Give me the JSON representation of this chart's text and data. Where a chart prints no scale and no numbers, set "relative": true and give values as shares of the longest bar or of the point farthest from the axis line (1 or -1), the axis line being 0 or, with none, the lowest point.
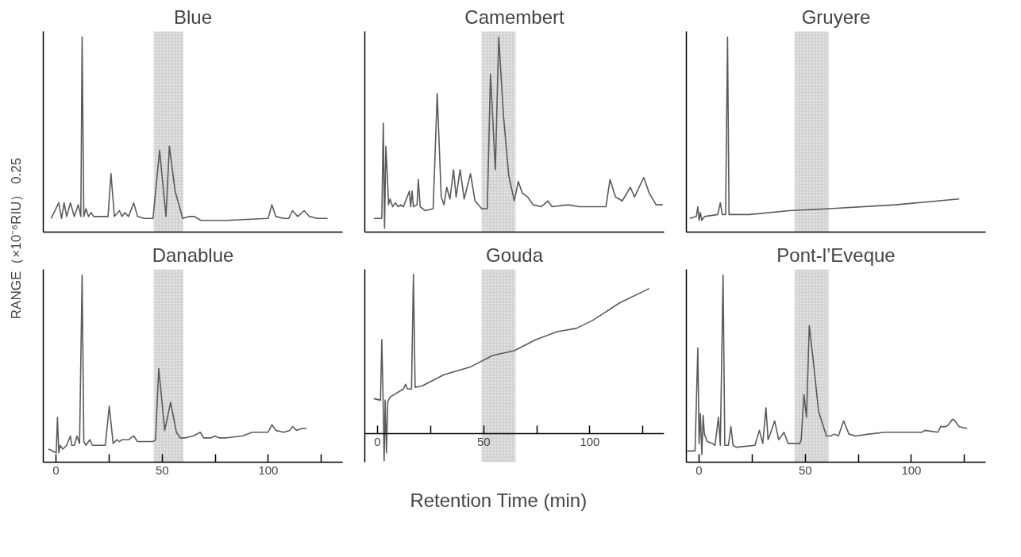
{
  "chart_data": [
    {
      "type": "line",
      "title": "Blue",
      "ylabel": "RANGE（×10⁻⁶RIU） 0.25",
      "relative": true,
      "xlim": [
        -6,
        135
      ],
      "tick_labels": false,
      "grid": false,
      "bands": [
        {
          "axis": "x",
          "from": 46,
          "to": 60,
          "color": "#c8c8c8"
        }
      ],
      "x": [
        -2.3,
        1.3,
        2.6,
        3.8,
        5.0,
        6.8,
        8.6,
        10.5,
        11.7,
        12.3,
        13.1,
        14.1,
        15.3,
        16.5,
        17.8,
        24.5,
        25.9,
        27.5,
        29.9,
        31.1,
        32.4,
        34.2,
        36.6,
        38.4,
        41.5,
        45.7,
        48.8,
        51.8,
        53.4,
        56.1,
        59.7,
        62.8,
        65.2,
        68.2,
        80.4,
        99.9,
        101.7,
        103.5,
        107.2,
        109.6,
        111.4,
        113.9,
        116.9,
        119.3,
        123.0,
        127.9
      ],
      "series": [
        {
          "color": "#5a5a5a",
          "values": [
            0.07,
            0.15,
            0.07,
            0.15,
            0.08,
            0.15,
            0.08,
            0.14,
            0.08,
            1.0,
            0.08,
            0.12,
            0.08,
            0.1,
            0.08,
            0.08,
            0.3,
            0.08,
            0.11,
            0.08,
            0.1,
            0.08,
            0.15,
            0.08,
            0.07,
            0.07,
            0.42,
            0.08,
            0.44,
            0.21,
            0.07,
            0.08,
            0.08,
            0.06,
            0.06,
            0.07,
            0.14,
            0.08,
            0.07,
            0.07,
            0.11,
            0.08,
            0.11,
            0.08,
            0.07,
            0.07
          ]
        }
      ]
    },
    {
      "type": "line",
      "title": "Camembert",
      "relative": true,
      "xlim": [
        -6,
        135
      ],
      "tick_labels": false,
      "grid": false,
      "bands": [
        {
          "axis": "x",
          "from": 49,
          "to": 65,
          "color": "#c8c8c8"
        }
      ],
      "x": [
        -1.8,
        2.0,
        2.7,
        3.3,
        3.9,
        4.6,
        5.2,
        5.9,
        7.1,
        8.4,
        9.7,
        10.9,
        12.2,
        15.0,
        15.6,
        16.3,
        16.9,
        18.6,
        19.2,
        20.1,
        22.4,
        26.2,
        28.1,
        30.0,
        31.3,
        32.6,
        34.1,
        35.8,
        37.0,
        38.9,
        40.8,
        43.8,
        45.9,
        49.1,
        51.7,
        53.2,
        55.5,
        57.1,
        59.3,
        61.8,
        64.4,
        66.3,
        68.2,
        70.7,
        73.3,
        77.1,
        80.3,
        82.2,
        89.8,
        94.9,
        107.6,
        109.5,
        112.1,
        115.3,
        119.1,
        121.0,
        125.4,
        128.0,
        131.2,
        134.4
      ],
      "series": [
        {
          "color": "#5a5a5a",
          "values": [
            0.07,
            0.07,
            0.56,
            0.02,
            0.44,
            0.29,
            0.14,
            0.17,
            0.13,
            0.15,
            0.13,
            0.14,
            0.13,
            0.21,
            0.13,
            0.21,
            0.13,
            0.14,
            0.27,
            0.13,
            0.11,
            0.12,
            0.71,
            0.18,
            0.14,
            0.23,
            0.17,
            0.32,
            0.18,
            0.32,
            0.17,
            0.3,
            0.16,
            0.12,
            0.12,
            0.81,
            0.32,
            1.0,
            0.6,
            0.29,
            0.16,
            0.26,
            0.2,
            0.18,
            0.14,
            0.13,
            0.16,
            0.13,
            0.14,
            0.13,
            0.13,
            0.27,
            0.18,
            0.16,
            0.23,
            0.18,
            0.28,
            0.2,
            0.14,
            0.14
          ]
        }
      ]
    },
    {
      "type": "line",
      "title": "Gruyere",
      "relative": true,
      "xlim": [
        -6,
        135
      ],
      "tick_labels": false,
      "grid": false,
      "bands": [
        {
          "axis": "x",
          "from": 45,
          "to": 61,
          "color": "#c8c8c8"
        }
      ],
      "x": [
        -4.4,
        -1.3,
        -0.6,
        0.0,
        0.6,
        1.3,
        2.5,
        8.8,
        10.0,
        10.9,
        12.5,
        13.4,
        14.1,
        23.8,
        42.5,
        61.3,
        92.5,
        122.5
      ],
      "series": [
        {
          "color": "#5a5a5a",
          "values": [
            0.07,
            0.08,
            0.13,
            0.06,
            0.1,
            0.06,
            0.08,
            0.09,
            0.15,
            0.09,
            0.09,
            1.0,
            0.09,
            0.09,
            0.11,
            0.12,
            0.14,
            0.17
          ]
        }
      ]
    },
    {
      "type": "line",
      "title": "Danablue",
      "relative": true,
      "xlim": [
        -6,
        135
      ],
      "xticks": [
        0,
        {
          "value": 25,
          "label": null
        },
        50,
        {
          "value": 75,
          "label": null
        },
        100,
        {
          "value": 125,
          "label": null
        }
      ],
      "tick_labels": "x",
      "grid": false,
      "bands": [
        {
          "axis": "x",
          "from": 46,
          "to": 60,
          "color": "#c8c8c8"
        }
      ],
      "x": [
        -3.5,
        0.1,
        0.7,
        1.3,
        1.9,
        3.2,
        5.0,
        6.8,
        7.4,
        8.6,
        9.9,
        11.1,
        12.3,
        13.1,
        14.1,
        15.9,
        17.2,
        23.2,
        25.1,
        26.9,
        28.7,
        29.9,
        31.1,
        33.0,
        34.2,
        36.6,
        38.4,
        45.7,
        46.9,
        48.4,
        51.2,
        54.0,
        56.7,
        58.5,
        60.9,
        64.6,
        68.0,
        69.5,
        73.1,
        74.9,
        76.8,
        80.4,
        87.7,
        92.6,
        99.9,
        101.7,
        103.5,
        107.2,
        110.2,
        111.4,
        113.3,
        115.7,
        118.1
      ],
      "series": [
        {
          "color": "#5a5a5a",
          "values": [
            0.07,
            0.05,
            0.24,
            0.05,
            0.09,
            0.07,
            0.09,
            0.14,
            0.09,
            0.09,
            0.14,
            0.1,
            1.0,
            0.11,
            0.09,
            0.12,
            0.09,
            0.09,
            0.3,
            0.1,
            0.12,
            0.11,
            0.12,
            0.12,
            0.12,
            0.14,
            0.11,
            0.11,
            0.12,
            0.5,
            0.17,
            0.32,
            0.16,
            0.13,
            0.13,
            0.14,
            0.16,
            0.13,
            0.13,
            0.14,
            0.13,
            0.13,
            0.14,
            0.16,
            0.16,
            0.2,
            0.17,
            0.16,
            0.17,
            0.19,
            0.17,
            0.18,
            0.18
          ]
        }
      ]
    },
    {
      "type": "line",
      "title": "Gouda",
      "xlabel": "Retention Time (min)",
      "relative": true,
      "xlim": [
        -6,
        135
      ],
      "xticks": [
        0,
        {
          "value": 25,
          "label": null
        },
        50,
        {
          "value": 75,
          "label": null
        },
        100,
        {
          "value": 125,
          "label": null
        }
      ],
      "tick_labels": "x",
      "grid": false,
      "bands": [
        {
          "axis": "x",
          "from": 49,
          "to": 65,
          "color": "#c8c8c8"
        }
      ],
      "x": [
        -1.8,
        1.4,
        2.0,
        2.7,
        3.1,
        3.6,
        4.2,
        4.8,
        5.9,
        12.2,
        13.2,
        14.1,
        16.0,
        16.9,
        17.7,
        21.1,
        31.3,
        44.0,
        54.2,
        64.4,
        74.6,
        84.7,
        93.6,
        101.3,
        114.0,
        128.0
      ],
      "series": [
        {
          "color": "#5a5a5a",
          "values": [
            0.22,
            0.21,
            0.59,
            0.16,
            -0.17,
            0.21,
            -0.12,
            0.2,
            0.23,
            0.28,
            0.31,
            0.28,
            0.28,
            1.0,
            0.29,
            0.3,
            0.37,
            0.42,
            0.49,
            0.52,
            0.59,
            0.64,
            0.66,
            0.71,
            0.82,
            0.91
          ]
        }
      ]
    },
    {
      "type": "line",
      "title": "Pont-l’Eveque",
      "relative": true,
      "xlim": [
        -6,
        135
      ],
      "xticks": [
        0,
        {
          "value": 25,
          "label": null
        },
        50,
        {
          "value": 75,
          "label": null
        },
        100,
        {
          "value": 125,
          "label": null
        }
      ],
      "tick_labels": "x",
      "grid": false,
      "bands": [
        {
          "axis": "x",
          "from": 45,
          "to": 61,
          "color": "#c8c8c8"
        }
      ],
      "x": [
        -5.6,
        -1.9,
        -0.6,
        0.0,
        0.6,
        1.3,
        1.9,
        2.5,
        3.8,
        6.3,
        7.5,
        9.1,
        10.0,
        11.3,
        12.1,
        13.8,
        15.0,
        16.0,
        17.5,
        26.3,
        28.4,
        30.0,
        31.5,
        32.5,
        33.8,
        35.6,
        37.5,
        40.0,
        41.9,
        47.5,
        48.1,
        49.4,
        50.6,
        51.9,
        53.8,
        56.3,
        60.0,
        61.9,
        63.8,
        65.6,
        68.1,
        70.6,
        73.8,
        80.0,
        87.5,
        105.0,
        106.3,
        112.5,
        113.8,
        116.3,
        117.5,
        119.4,
        120.6,
        122.5,
        126.3
      ],
      "series": [
        {
          "color": "#5a5a5a",
          "values": [
            0.06,
            0.06,
            0.61,
            0.1,
            0.26,
            0.04,
            0.25,
            0.15,
            0.11,
            0.1,
            0.09,
            0.24,
            0.09,
            1.0,
            0.09,
            0.09,
            0.19,
            0.09,
            0.08,
            0.09,
            0.17,
            0.1,
            0.29,
            0.12,
            0.16,
            0.22,
            0.12,
            0.16,
            0.1,
            0.1,
            0.12,
            0.36,
            0.24,
            0.73,
            0.54,
            0.27,
            0.14,
            0.14,
            0.15,
            0.14,
            0.22,
            0.15,
            0.14,
            0.15,
            0.16,
            0.16,
            0.17,
            0.16,
            0.19,
            0.19,
            0.2,
            0.23,
            0.22,
            0.19,
            0.18
          ]
        }
      ]
    }
  ]
}
